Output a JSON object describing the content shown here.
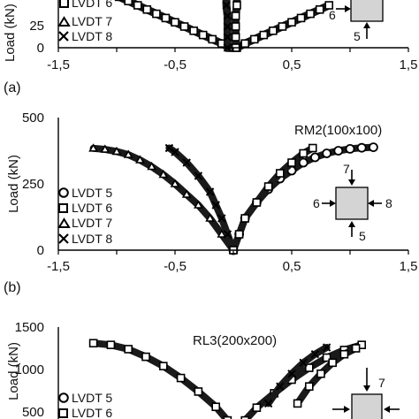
{
  "chart_data": [
    {
      "panel": "(a)",
      "type": "scatter",
      "title": "",
      "xlabel": "",
      "ylabel": "Load (kN)",
      "xlim": [
        -1.5,
        1.5
      ],
      "ylim": [
        0,
        75
      ],
      "xticks": [
        "-1,5",
        "-0,5",
        "0,5",
        "1,5"
      ],
      "yticks": [
        "0",
        "25"
      ],
      "legend": [
        "LVDT 6",
        "LVDT 7",
        "LVDT 8"
      ],
      "legend_placement": "left",
      "inset_labels": [
        "6",
        "5"
      ],
      "series": [
        {
          "x": [
            -1.05,
            -0.98,
            -0.9,
            -0.82,
            -0.74,
            -0.66,
            -0.58,
            -0.5,
            -0.42,
            -0.34,
            -0.26,
            -0.18,
            -0.1,
            -0.03
          ],
          "y": [
            52,
            48,
            44,
            40,
            36,
            32,
            28,
            24,
            20,
            16,
            12,
            8,
            4,
            0
          ]
        },
        {
          "x": [
            0.03,
            0.1,
            0.18,
            0.26,
            0.34,
            0.42,
            0.5,
            0.58,
            0.66,
            0.74,
            0.82
          ],
          "y": [
            0,
            4,
            8,
            12,
            16,
            20,
            24,
            28,
            32,
            36,
            40
          ]
        },
        {
          "x": [
            -0.05,
            -0.05,
            -0.05,
            -0.05,
            -0.06,
            -0.06,
            -0.05,
            -0.04
          ],
          "y": [
            0,
            10,
            20,
            30,
            40,
            50,
            60,
            70
          ]
        },
        {
          "x": [
            0.02,
            0.02,
            0.02,
            0.02,
            0.03,
            0.03,
            0.02,
            0.01
          ],
          "y": [
            0,
            10,
            20,
            30,
            40,
            50,
            60,
            70
          ]
        }
      ]
    },
    {
      "panel": "(b)",
      "type": "scatter",
      "title": "RM2(100x100)",
      "xlabel": "",
      "ylabel": "Load (kN)",
      "xlim": [
        -1.5,
        1.5
      ],
      "ylim": [
        0,
        500
      ],
      "xticks": [
        "-1,5",
        "-0,5",
        "0,5",
        "1,5"
      ],
      "yticks": [
        "0",
        "250",
        "500"
      ],
      "legend": [
        "LVDT 5",
        "LVDT 6",
        "LVDT 7",
        "LVDT 8"
      ],
      "legend_placement": "left",
      "inset_labels": [
        "7",
        "6",
        "8",
        "5"
      ],
      "series": [
        {
          "x": [
            0,
            0.05,
            0.1,
            0.2,
            0.3,
            0.4,
            0.5,
            0.6,
            0.7,
            0.8,
            0.9,
            1.0,
            1.1,
            1.2
          ],
          "y": [
            0,
            60,
            120,
            180,
            230,
            270,
            300,
            330,
            350,
            365,
            375,
            382,
            386,
            388
          ]
        },
        {
          "x": [
            0,
            -0.1,
            -0.2,
            -0.3,
            -0.4,
            -0.5,
            -0.6,
            -0.7,
            -0.8,
            -0.9,
            -1.0,
            -1.1,
            -1.2
          ],
          "y": [
            0,
            60,
            120,
            170,
            210,
            250,
            285,
            315,
            340,
            360,
            372,
            380,
            384
          ]
        },
        {
          "x": [
            0,
            -0.05,
            -0.1,
            -0.15,
            -0.2,
            -0.3,
            -0.4,
            -0.5,
            -0.55
          ],
          "y": [
            0,
            60,
            120,
            170,
            220,
            280,
            330,
            370,
            385
          ]
        },
        {
          "x": [
            0,
            0.05,
            0.1,
            0.2,
            0.3,
            0.4,
            0.5,
            0.6,
            0.68
          ],
          "y": [
            0,
            60,
            120,
            180,
            240,
            290,
            330,
            365,
            385
          ]
        }
      ]
    },
    {
      "panel": "(c)",
      "type": "scatter",
      "title": "RL3(200x200)",
      "xlabel": "",
      "ylabel": "Load (kN)",
      "xlim": [
        -1.5,
        1.5
      ],
      "ylim": [
        0,
        1500
      ],
      "xticks": [],
      "yticks": [
        "500",
        "1000",
        "1500"
      ],
      "legend": [
        "LVDT 5",
        "LVDT 6"
      ],
      "legend_placement": "left",
      "inset_labels": [
        "7"
      ],
      "series": [
        {
          "x": [
            -0.05,
            -0.15,
            -0.3,
            -0.45,
            -0.6,
            -0.75,
            -0.9,
            -1.05,
            -1.2
          ],
          "y": [
            400,
            560,
            740,
            900,
            1040,
            1150,
            1240,
            1290,
            1310
          ]
        },
        {
          "x": [
            0.1,
            0.2,
            0.35,
            0.5,
            0.65,
            0.8,
            0.95,
            1.1
          ],
          "y": [
            400,
            550,
            720,
            880,
            1020,
            1140,
            1230,
            1290
          ]
        },
        {
          "x": [
            0.3,
            0.4,
            0.5,
            0.6,
            0.7,
            0.8
          ],
          "y": [
            600,
            800,
            950,
            1080,
            1180,
            1260
          ]
        },
        {
          "x": [
            0.55,
            0.65,
            0.75,
            0.85,
            0.95,
            1.05
          ],
          "y": [
            600,
            800,
            950,
            1080,
            1180,
            1250
          ]
        }
      ]
    }
  ]
}
